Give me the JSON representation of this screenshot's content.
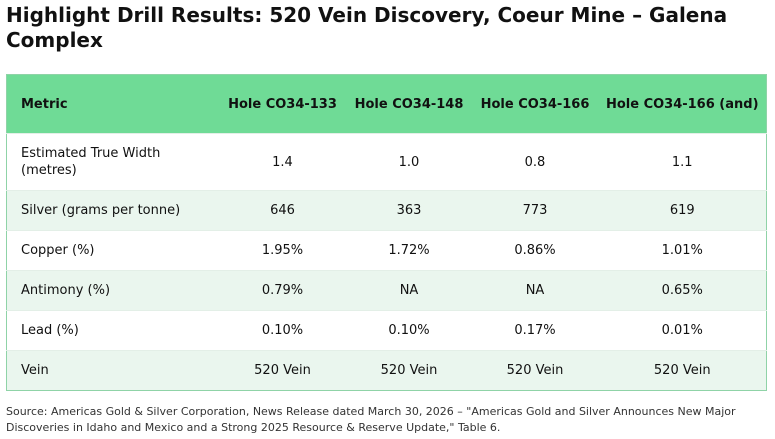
{
  "header": {
    "title": "Highlight Drill Results: 520 Vein Discovery, Coeur Mine – Galena Complex"
  },
  "table": {
    "columns": [
      "Metric",
      "Hole CO34-133",
      "Hole CO34-148",
      "Hole CO34-166",
      "Hole CO34-166 (and)"
    ],
    "rows": [
      [
        "Estimated True Width (metres)",
        "1.4",
        "1.0",
        "0.8",
        "1.1"
      ],
      [
        "Silver (grams per tonne)",
        "646",
        "363",
        "773",
        "619"
      ],
      [
        "Copper (%)",
        "1.95%",
        "1.72%",
        "0.86%",
        "1.01%"
      ],
      [
        "Antimony (%)",
        "0.79%",
        "NA",
        "NA",
        "0.65%"
      ],
      [
        "Lead (%)",
        "0.10%",
        "0.10%",
        "0.17%",
        "0.01%"
      ],
      [
        "Vein",
        "520 Vein",
        "520 Vein",
        "520 Vein",
        "520 Vein"
      ]
    ]
  },
  "footer": {
    "source": "Source: Americas Gold & Silver Corporation, News Release dated March 30, 2026 – \"Americas Gold and Silver Announces New Major Discoveries in Idaho and Mexico and a Strong 2025 Resource & Reserve Update,\" Table 6."
  }
}
